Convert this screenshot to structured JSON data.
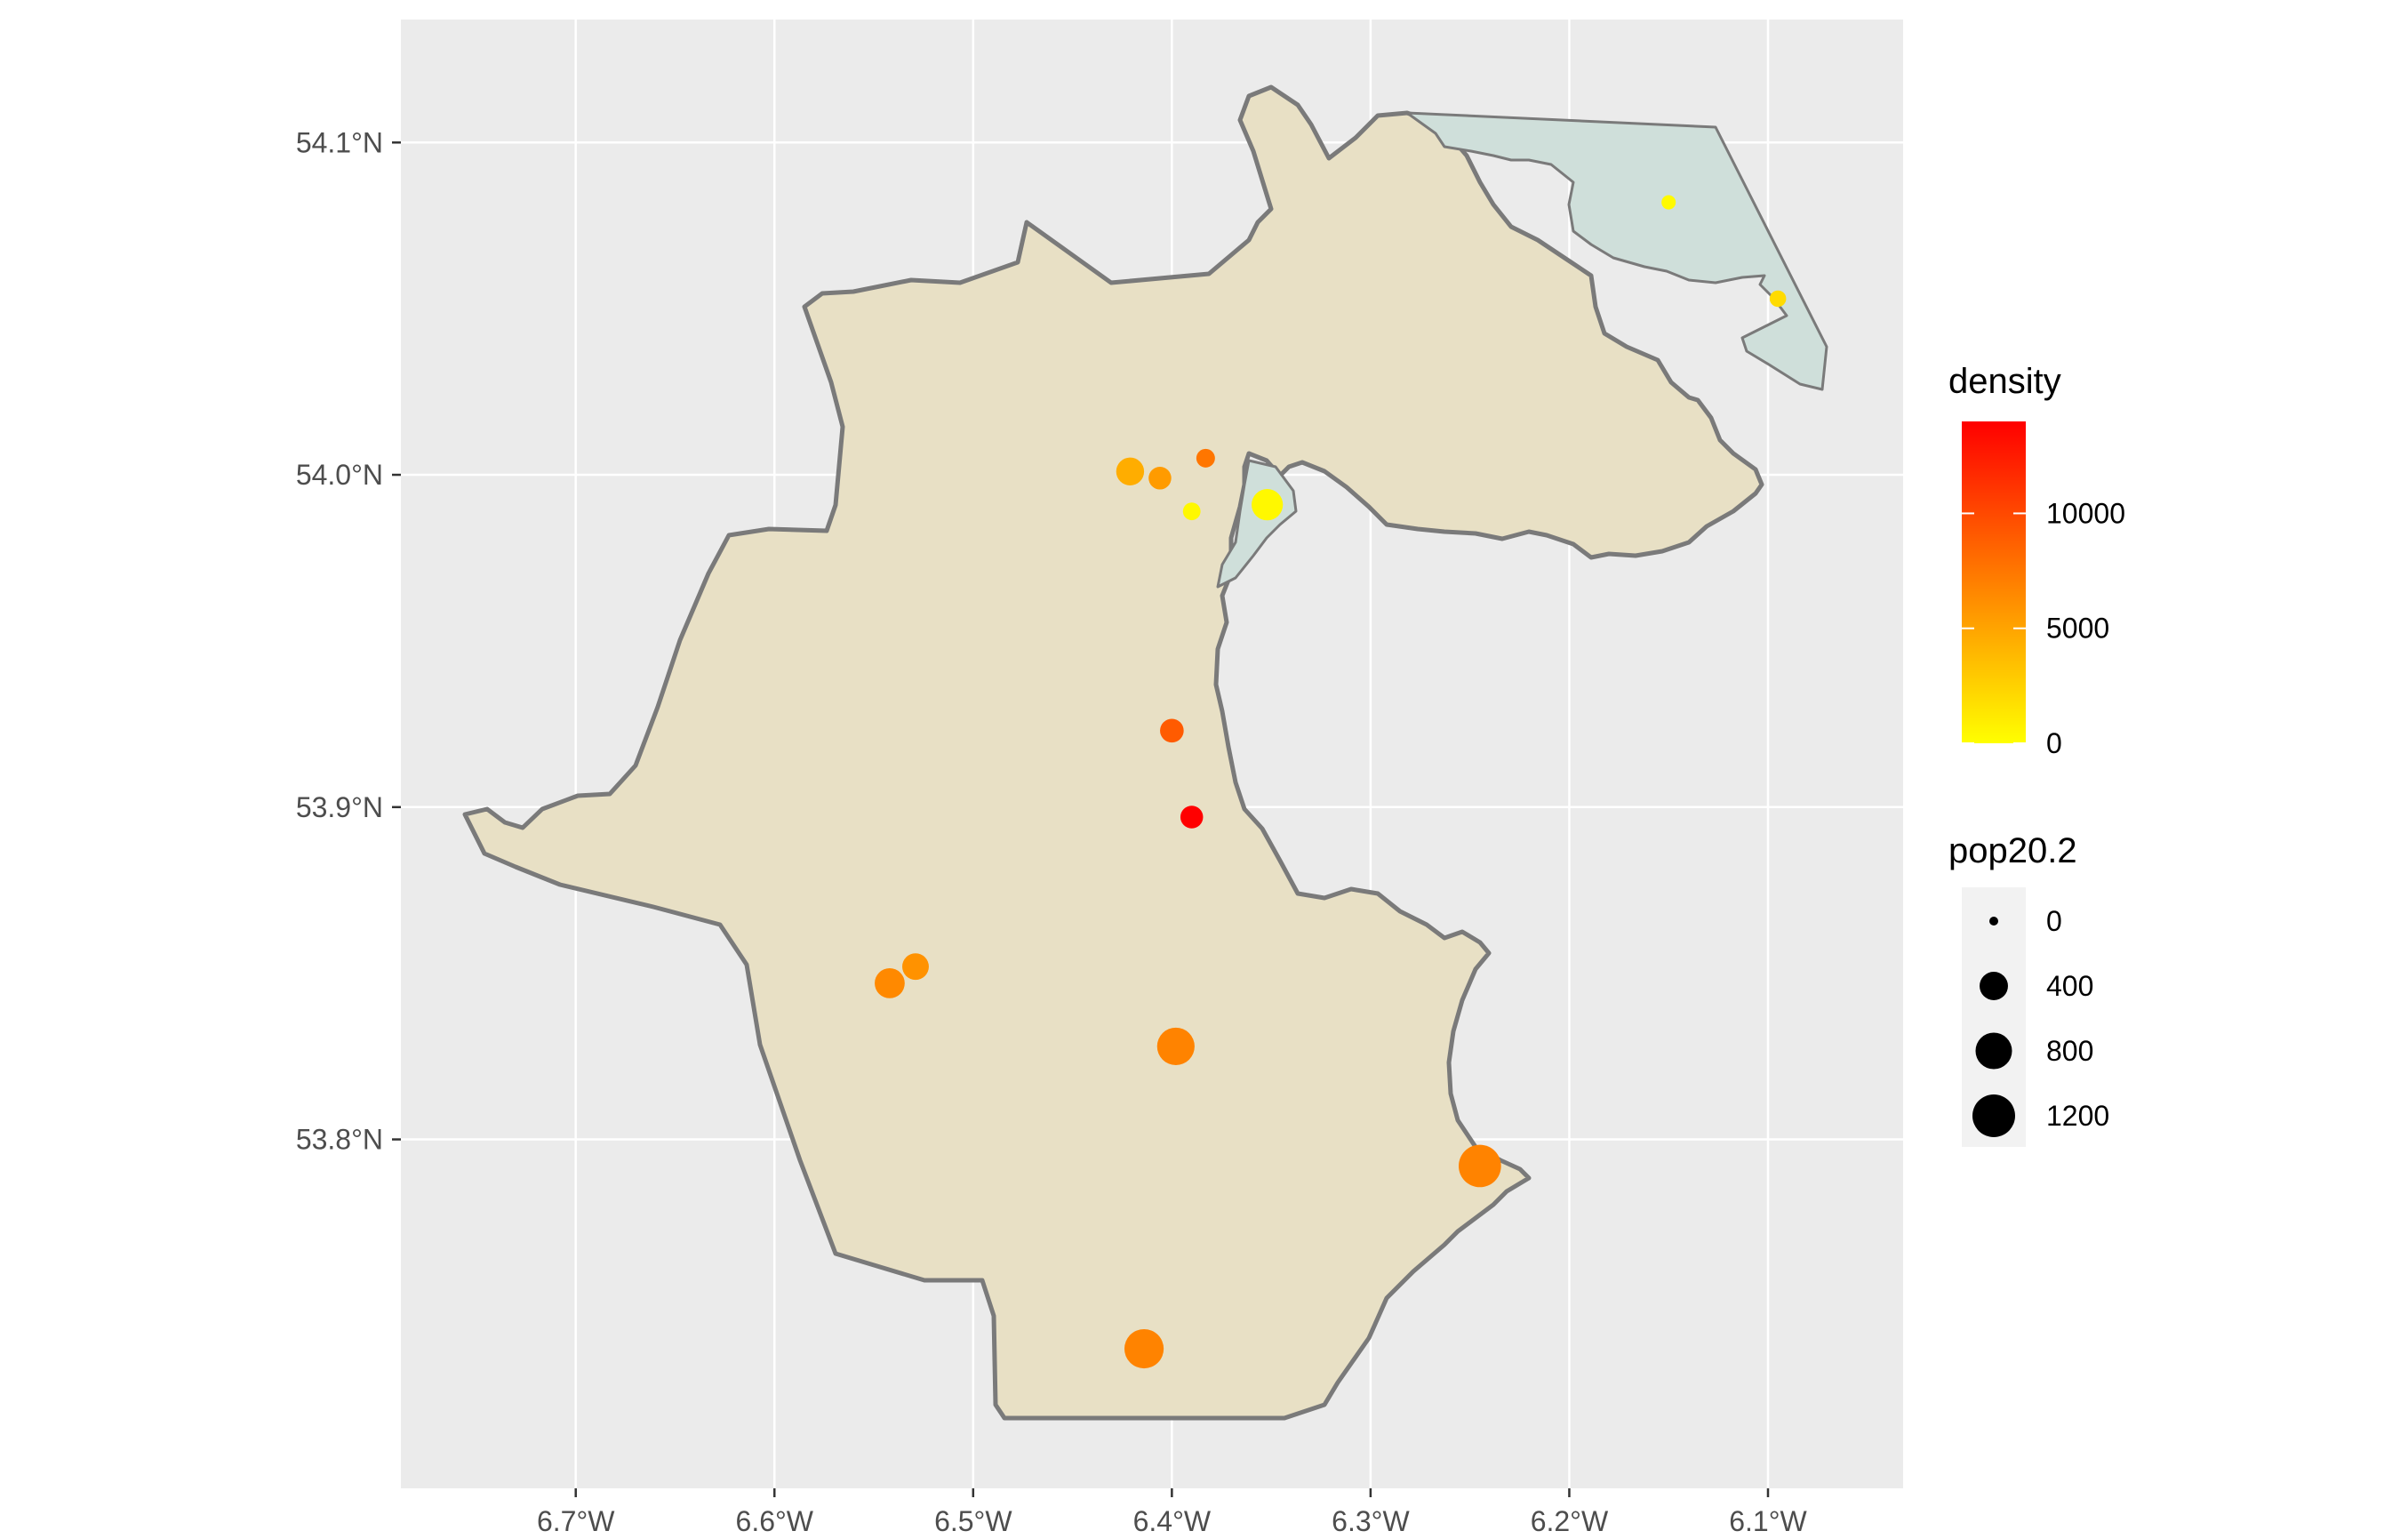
{
  "colors": {
    "panel": "#EBEBEB",
    "grid": "#FFFFFF",
    "county_fill": "#E8E0C5",
    "county_stroke": "#7A7A7A",
    "coast_fill": "#CFDFDA",
    "low": "#FFFF00",
    "high": "#FF0000"
  },
  "map": {
    "x_ticks": [
      {
        "value": -6.7,
        "label": "6.7°W"
      },
      {
        "value": -6.6,
        "label": "6.6°W"
      },
      {
        "value": -6.5,
        "label": "6.5°W"
      },
      {
        "value": -6.4,
        "label": "6.4°W"
      },
      {
        "value": -6.3,
        "label": "6.3°W"
      },
      {
        "value": -6.2,
        "label": "6.2°W"
      },
      {
        "value": -6.1,
        "label": "6.1°W"
      }
    ],
    "y_ticks": [
      {
        "value": 54.1,
        "label": "54.1°N"
      },
      {
        "value": 54.0,
        "label": "54.0°N"
      },
      {
        "value": 53.9,
        "label": "53.9°N"
      },
      {
        "value": 53.8,
        "label": "53.8°N"
      }
    ],
    "lon_range": [
      -6.788,
      -6.032
    ],
    "lat_range": [
      53.695,
      54.137
    ],
    "points": [
      {
        "lon": -6.15,
        "lat": 54.082,
        "pop": 30,
        "density": 300
      },
      {
        "lon": -6.095,
        "lat": 54.053,
        "pop": 60,
        "density": 2000
      },
      {
        "lon": -6.421,
        "lat": 54.001,
        "pop": 380,
        "density": 4500
      },
      {
        "lon": -6.406,
        "lat": 53.999,
        "pop": 200,
        "density": 5500
      },
      {
        "lon": -6.383,
        "lat": 54.005,
        "pop": 100,
        "density": 7500
      },
      {
        "lon": -6.39,
        "lat": 53.989,
        "pop": 80,
        "density": 400
      },
      {
        "lon": -6.352,
        "lat": 53.991,
        "pop": 530,
        "density": 400
      },
      {
        "lon": -6.4,
        "lat": 53.923,
        "pop": 230,
        "density": 9000
      },
      {
        "lon": -6.39,
        "lat": 53.897,
        "pop": 200,
        "density": 14000
      },
      {
        "lon": -6.542,
        "lat": 53.847,
        "pop": 470,
        "density": 6500
      },
      {
        "lon": -6.529,
        "lat": 53.852,
        "pop": 330,
        "density": 6000
      },
      {
        "lon": -6.398,
        "lat": 53.828,
        "pop": 860,
        "density": 6800
      },
      {
        "lon": -6.245,
        "lat": 53.792,
        "pop": 1180,
        "density": 6800
      },
      {
        "lon": -6.414,
        "lat": 53.737,
        "pop": 970,
        "density": 6800
      }
    ]
  },
  "legend": {
    "density_title": "density",
    "density_min": 0,
    "density_max": 14000,
    "density_breaks": [
      {
        "value": 0,
        "label": "0"
      },
      {
        "value": 5000,
        "label": "5000"
      },
      {
        "value": 10000,
        "label": "10000"
      }
    ],
    "pop_title": "pop20.2",
    "pop_max": 1200,
    "pop_breaks": [
      {
        "value": 0,
        "label": "0"
      },
      {
        "value": 400,
        "label": "400"
      },
      {
        "value": 800,
        "label": "800"
      },
      {
        "value": 1200,
        "label": "1200"
      }
    ]
  }
}
